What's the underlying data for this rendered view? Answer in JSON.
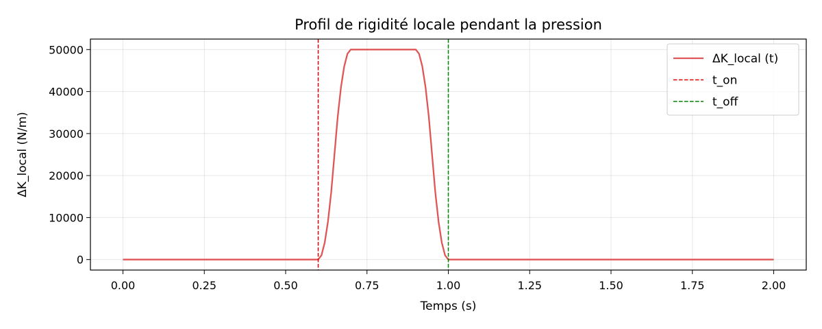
{
  "chart_data": {
    "type": "line",
    "title": "Profil de rigidité locale pendant la pression",
    "xlabel": "Temps (s)",
    "ylabel": "ΔK_local (N/m)",
    "xlim": [
      -0.1,
      2.1
    ],
    "ylim": [
      -2500,
      52500
    ],
    "xticks": [
      0.0,
      0.25,
      0.5,
      0.75,
      1.0,
      1.25,
      1.5,
      1.75,
      2.0
    ],
    "xtick_labels": [
      "0.00",
      "0.25",
      "0.50",
      "0.75",
      "1.00",
      "1.25",
      "1.50",
      "1.75",
      "2.00"
    ],
    "yticks": [
      0,
      10000,
      20000,
      30000,
      40000,
      50000
    ],
    "ytick_labels": [
      "0",
      "10000",
      "20000",
      "30000",
      "40000",
      "50000"
    ],
    "grid": true,
    "legend_position": "top-right",
    "series": [
      {
        "name": "ΔK_local (t)",
        "color": "#e05555",
        "style": "solid",
        "x": [
          0.0,
          0.6,
          0.61,
          0.62,
          0.63,
          0.64,
          0.65,
          0.66,
          0.67,
          0.68,
          0.69,
          0.7,
          0.9,
          0.91,
          0.92,
          0.93,
          0.94,
          0.95,
          0.96,
          0.97,
          0.98,
          0.99,
          1.0,
          2.0
        ],
        "y": [
          0,
          0,
          1000,
          4000,
          9000,
          16000,
          25000,
          34000,
          41000,
          46000,
          49000,
          50000,
          50000,
          49000,
          46000,
          41000,
          34000,
          25000,
          16000,
          9000,
          4000,
          1000,
          0,
          0
        ]
      }
    ],
    "vlines": [
      {
        "name": "t_on",
        "x": 0.6,
        "color": "#e00000",
        "style": "dashed"
      },
      {
        "name": "t_off",
        "x": 1.0,
        "color": "#008000",
        "style": "dashed"
      }
    ]
  }
}
